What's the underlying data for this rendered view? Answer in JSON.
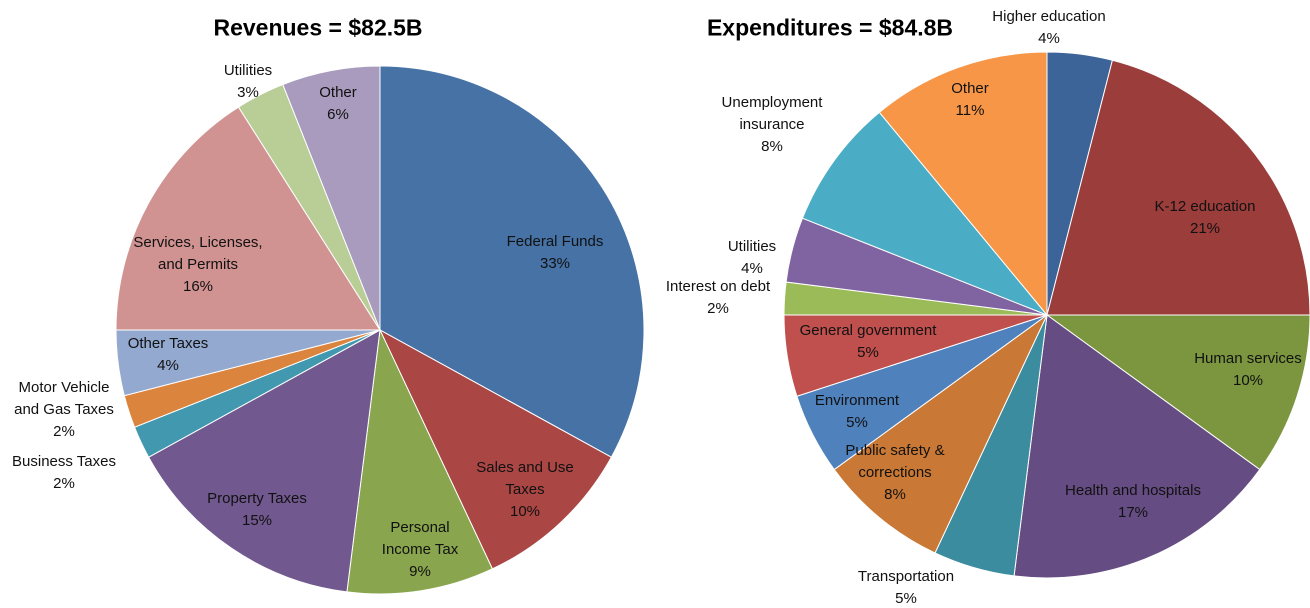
{
  "chart_data": [
    {
      "type": "pie",
      "title": "Revenues = $82.5B",
      "categories": [
        "Federal Funds",
        "Sales and Use\nTaxes",
        "Personal\nIncome Tax",
        "Property Taxes",
        "Business Taxes",
        "Motor Vehicle\nand Gas Taxes",
        "Other Taxes",
        "Services, Licenses,\nand Permits",
        "Utilities",
        "Other"
      ],
      "values": [
        33,
        10,
        9,
        15,
        2,
        2,
        4,
        16,
        3,
        6
      ],
      "value_labels": [
        "33%",
        "10%",
        "9%",
        "15%",
        "2%",
        "2%",
        "4%",
        "16%",
        "3%",
        "6%"
      ],
      "colors": [
        "#4672a6",
        "#aa4644",
        "#89a54e",
        "#71588f",
        "#4198af",
        "#db843d",
        "#93a9cf",
        "#d19392",
        "#b9cd96",
        "#a99bbd"
      ]
    },
    {
      "type": "pie",
      "title": "Expenditures = $84.8B",
      "categories": [
        "Higher education",
        "K-12 education",
        "Human services",
        "Health and hospitals",
        "Transportation",
        "Public safety &\ncorrections",
        "Environment",
        "General government",
        "Interest on debt",
        "Utilities",
        "Unemployment\ninsurance",
        "Other"
      ],
      "values": [
        4,
        21,
        10,
        17,
        5,
        8,
        5,
        5,
        2,
        4,
        8,
        11
      ],
      "value_labels": [
        "4%",
        "21%",
        "10%",
        "17%",
        "5%",
        "8%",
        "5%",
        "5%",
        "2%",
        "4%",
        "8%",
        "11%"
      ],
      "colors": [
        "#3d6499",
        "#9b3d3b",
        "#7b963f",
        "#654c82",
        "#3b8c9e",
        "#c97935",
        "#4f81bd",
        "#c0504d",
        "#9bbb59",
        "#8064a2",
        "#4bacc6",
        "#f79646"
      ]
    }
  ]
}
